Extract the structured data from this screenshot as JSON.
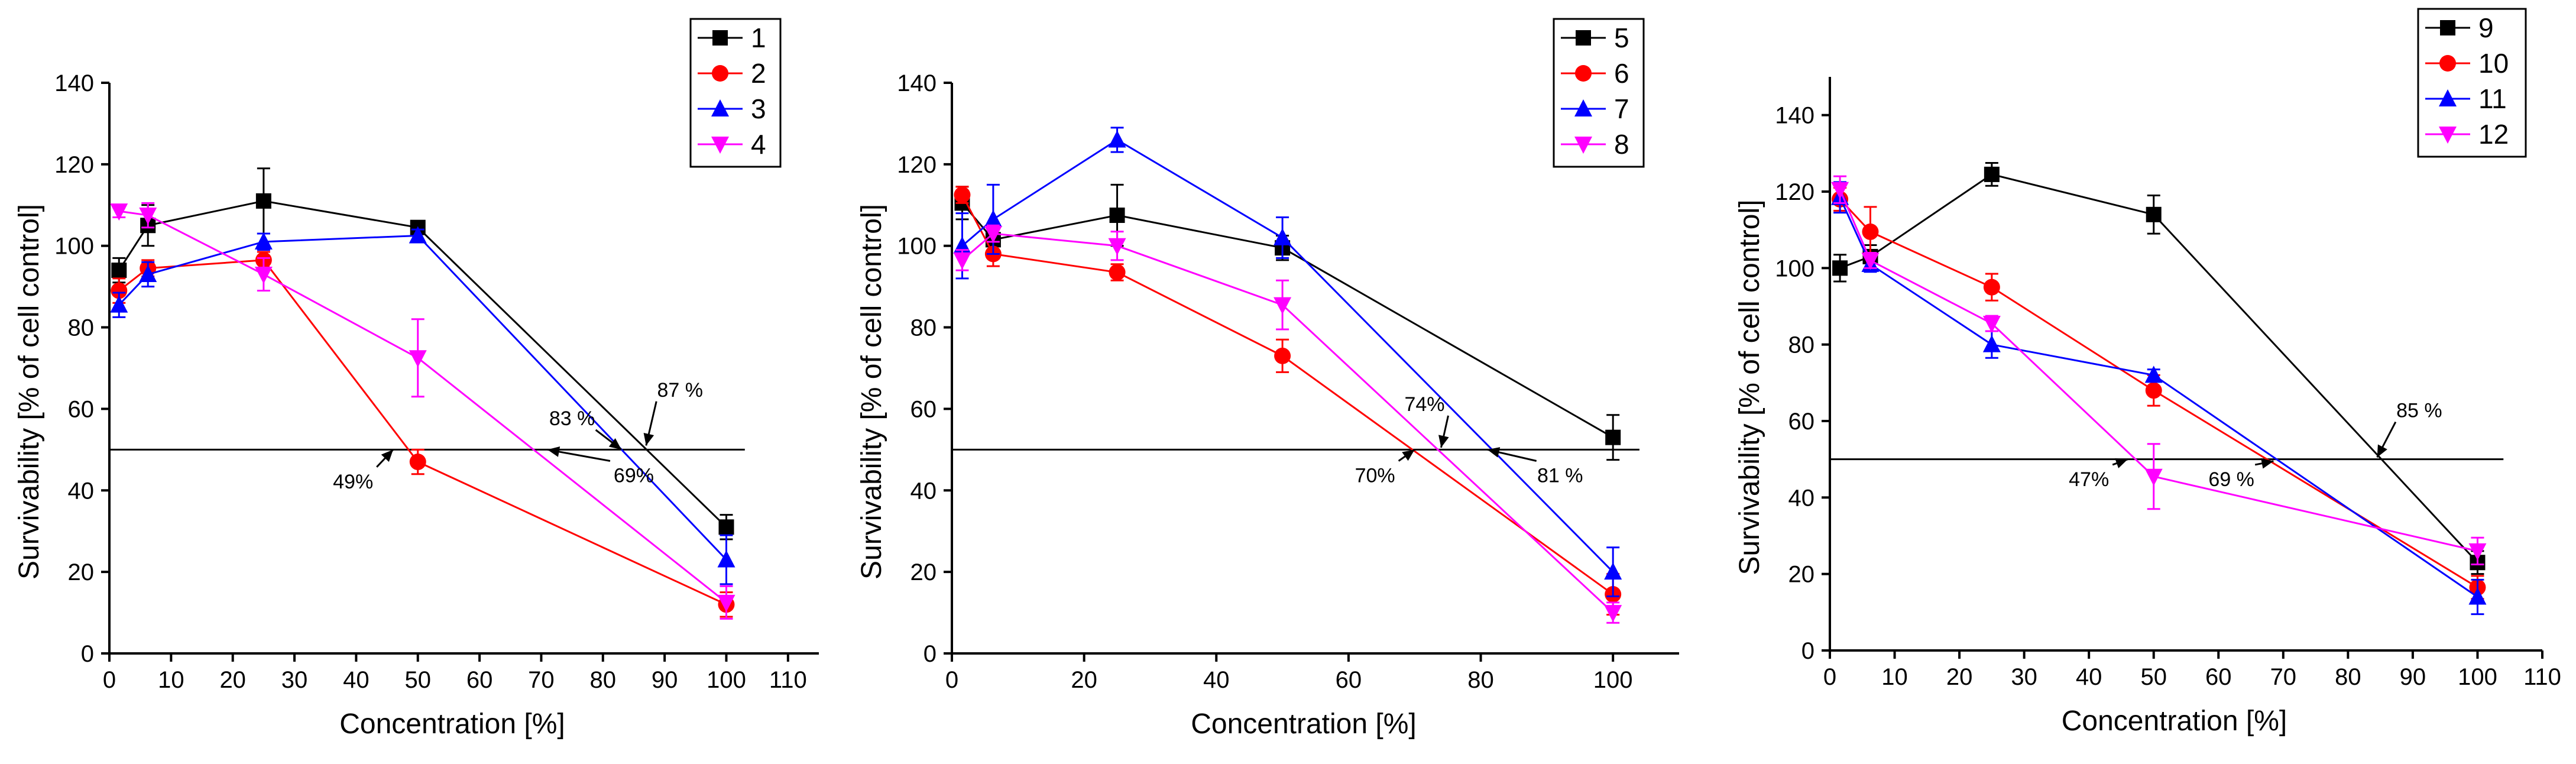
{
  "chart_data": [
    {
      "type": "line",
      "id": "left",
      "xlabel": "Concentration [%]",
      "ylabel": "Survivability [% of cell control]",
      "xlim": [
        0,
        115
      ],
      "ylim": [
        0,
        140
      ],
      "xticks": [
        0,
        10,
        20,
        30,
        40,
        50,
        60,
        70,
        80,
        90,
        100,
        110
      ],
      "yticks": [
        0,
        20,
        40,
        60,
        80,
        100,
        120,
        140
      ],
      "reference_line": {
        "y": 50,
        "x_from": 0,
        "x_to": 103
      },
      "series": [
        {
          "name": "1",
          "color": "#000000",
          "marker": "square",
          "x": [
            1.56,
            6.25,
            25,
            50,
            100
          ],
          "y": [
            94,
            105,
            111,
            104.5,
            31
          ],
          "err": [
            3,
            5,
            8,
            1.5,
            3
          ]
        },
        {
          "name": "2",
          "color": "#ff0000",
          "marker": "circle",
          "x": [
            1.56,
            6.25,
            25,
            50,
            100
          ],
          "y": [
            89,
            94.5,
            96.5,
            47,
            12
          ],
          "err": [
            3,
            2,
            2,
            3,
            3
          ]
        },
        {
          "name": "3",
          "color": "#0000ff",
          "marker": "triangle-up",
          "x": [
            1.56,
            6.25,
            25,
            50,
            100
          ],
          "y": [
            85.5,
            93,
            101,
            102.5,
            23
          ],
          "err": [
            3,
            3,
            2,
            1.5,
            6
          ]
        },
        {
          "name": "4",
          "color": "#ff00ff",
          "marker": "triangle-down",
          "x": [
            1.56,
            6.25,
            25,
            50,
            100
          ],
          "y": [
            108.5,
            107.5,
            93,
            72.5,
            12.5
          ],
          "err": [
            1.5,
            3,
            4,
            9.5,
            4
          ]
        }
      ],
      "annotations": [
        {
          "text": "49%",
          "x": 39.5,
          "y": 40.5,
          "arrow_to": [
            46,
            50
          ]
        },
        {
          "text": "69%",
          "x": 85,
          "y": 42,
          "arrow_to": [
            71,
            50
          ]
        },
        {
          "text": "83 %",
          "x": 75,
          "y": 56,
          "arrow_to": [
            83,
            50
          ]
        },
        {
          "text": "87 %",
          "x": 92.5,
          "y": 63,
          "arrow_to": [
            87,
            51
          ]
        }
      ]
    },
    {
      "type": "line",
      "id": "middle",
      "xlabel": "Concentration [%]",
      "ylabel": "Survivability [% of cell control]",
      "xlim": [
        0,
        110
      ],
      "ylim": [
        0,
        140
      ],
      "xticks": [
        0,
        20,
        40,
        60,
        80,
        100
      ],
      "yticks": [
        0,
        20,
        40,
        60,
        80,
        100,
        120,
        140
      ],
      "reference_line": {
        "y": 50,
        "x_from": 0,
        "x_to": 104
      },
      "series": [
        {
          "name": "5",
          "color": "#000000",
          "marker": "square",
          "x": [
            1.56,
            6.25,
            25,
            50,
            100
          ],
          "y": [
            110.5,
            101.5,
            107.5,
            99.5,
            53
          ],
          "err": [
            4,
            3,
            7.5,
            3,
            5.5
          ]
        },
        {
          "name": "6",
          "color": "#ff0000",
          "marker": "circle",
          "x": [
            1.56,
            6.25,
            25,
            50,
            100
          ],
          "y": [
            112.5,
            98,
            93.5,
            73,
            14.5
          ],
          "err": [
            2,
            3,
            2,
            4,
            5
          ]
        },
        {
          "name": "7",
          "color": "#0000ff",
          "marker": "triangle-up",
          "x": [
            1.56,
            6.25,
            25,
            50,
            100
          ],
          "y": [
            100,
            106.5,
            126,
            102,
            20
          ],
          "err": [
            8,
            8.5,
            3,
            5,
            6
          ]
        },
        {
          "name": "8",
          "color": "#ff00ff",
          "marker": "triangle-down",
          "x": [
            1.56,
            6.25,
            25,
            50,
            100
          ],
          "y": [
            96.5,
            103,
            100,
            85.5,
            10
          ],
          "err": [
            2.5,
            2,
            3.5,
            6,
            2.5
          ]
        }
      ],
      "annotations": [
        {
          "text": "70%",
          "x": 64,
          "y": 42,
          "arrow_to": [
            70,
            50
          ]
        },
        {
          "text": "74%",
          "x": 71.5,
          "y": 59.5,
          "arrow_to": [
            74,
            50.5
          ]
        },
        {
          "text": "81 %",
          "x": 92,
          "y": 42,
          "arrow_to": [
            81,
            50
          ]
        }
      ]
    },
    {
      "type": "line",
      "id": "right",
      "xlabel": "Concentration [%]",
      "ylabel": "Survivability [% of cell control]",
      "xlim": [
        0,
        110
      ],
      "ylim": [
        0,
        150
      ],
      "xticks": [
        0,
        10,
        20,
        30,
        40,
        50,
        60,
        70,
        80,
        90,
        100,
        110
      ],
      "yticks": [
        0,
        20,
        40,
        60,
        80,
        100,
        120,
        140
      ],
      "reference_line": {
        "y": 50,
        "x_from": 0,
        "x_to": 104
      },
      "series": [
        {
          "name": "9",
          "color": "#000000",
          "marker": "square",
          "x": [
            1.56,
            6.25,
            25,
            50,
            100
          ],
          "y": [
            100,
            103,
            124.5,
            114,
            23
          ],
          "err": [
            3.5,
            3,
            3,
            5,
            3
          ]
        },
        {
          "name": "10",
          "color": "#ff0000",
          "marker": "circle",
          "x": [
            1.56,
            6.25,
            25,
            50,
            100
          ],
          "y": [
            118,
            109.5,
            95,
            68,
            16.5
          ],
          "err": [
            3,
            6.5,
            3.5,
            4,
            3
          ]
        },
        {
          "name": "11",
          "color": "#0000ff",
          "marker": "triangle-up",
          "x": [
            1.56,
            6.25,
            25,
            50,
            100
          ],
          "y": [
            118.5,
            101,
            80,
            72,
            14
          ],
          "err": [
            4,
            2,
            3.5,
            1.5,
            4.5
          ]
        },
        {
          "name": "12",
          "color": "#ff00ff",
          "marker": "triangle-down",
          "x": [
            1.56,
            6.25,
            25,
            50,
            100
          ],
          "y": [
            120.5,
            102,
            85.5,
            45.5,
            26
          ],
          "err": [
            3.5,
            2,
            2,
            8.5,
            3.5
          ]
        }
      ],
      "annotations": [
        {
          "text": "47%",
          "x": 40,
          "y": 43,
          "arrow_to": [
            46,
            50
          ]
        },
        {
          "text": "69 %",
          "x": 62,
          "y": 43,
          "arrow_to": [
            68.5,
            49.5
          ]
        },
        {
          "text": "85 %",
          "x": 91,
          "y": 61,
          "arrow_to": [
            84.5,
            50.5
          ]
        }
      ]
    }
  ]
}
